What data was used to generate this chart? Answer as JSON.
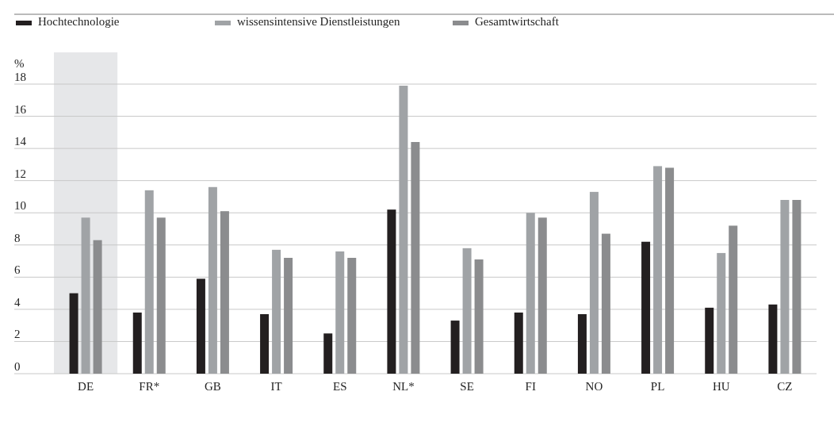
{
  "chart_data": {
    "type": "bar",
    "ylabel": "%",
    "categories": [
      "DE",
      "FR*",
      "GB",
      "IT",
      "ES",
      "NL*",
      "SE",
      "FI",
      "NO",
      "PL",
      "HU",
      "CZ"
    ],
    "series": [
      {
        "name": "Hochtechnologie",
        "color": "#231f20",
        "values": [
          5.0,
          3.8,
          5.9,
          3.7,
          2.5,
          10.2,
          3.3,
          3.8,
          3.7,
          8.2,
          4.1,
          4.3
        ]
      },
      {
        "name": "wissensintensive Dienstleistungen",
        "color": "#a0a3a6",
        "values": [
          9.7,
          11.4,
          11.6,
          7.7,
          7.6,
          17.9,
          7.8,
          10.0,
          11.3,
          12.9,
          7.5,
          10.8
        ]
      },
      {
        "name": "Gesamtwirtschaft",
        "color": "#8b8c8e",
        "values": [
          8.3,
          9.7,
          10.1,
          7.2,
          7.2,
          14.4,
          7.1,
          9.7,
          8.7,
          12.8,
          9.2,
          10.8
        ]
      }
    ],
    "ylim": [
      0,
      18
    ],
    "yticks": [
      0,
      2,
      4,
      6,
      8,
      10,
      12,
      14,
      16,
      18
    ],
    "grid": "y",
    "legend": "top left",
    "bands": [
      {
        "axis": "x",
        "from": "DE",
        "to": "DE",
        "color": "#e6e7e9"
      }
    ]
  }
}
